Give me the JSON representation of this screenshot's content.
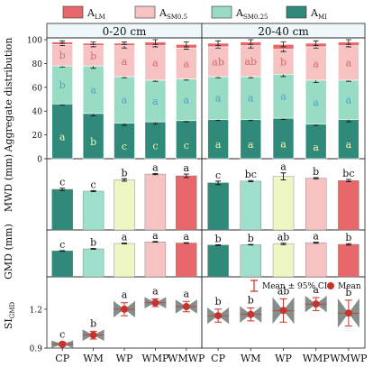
{
  "legend": {
    "items": [
      {
        "key": "LM",
        "base": "A",
        "sub": "LM",
        "color": "#e8676b"
      },
      {
        "key": "SM05",
        "base": "A",
        "sub": "SM0.5",
        "color": "#f6c2c2"
      },
      {
        "key": "SM025",
        "base": "A",
        "sub": "SM0.25",
        "color": "#99dcc4"
      },
      {
        "key": "MI",
        "base": "A",
        "sub": "MI",
        "color": "#2f8a7a"
      }
    ]
  },
  "panels": {
    "left_title": "0-20  cm",
    "right_title": "20-40 cm"
  },
  "ylabels": {
    "agg": "Aggregate distribution",
    "mwd": "MWD (mm)",
    "gmd": "GMD (mm)",
    "si_base": "SI",
    "si_sub": "GMD"
  },
  "ci_legend": {
    "ci_label": "Mean ± 95% CI",
    "mean_label": "Mean"
  },
  "colors": {
    "CP": "#2f8a7a",
    "WM": "#9ee0cc",
    "WP": "#eef7c4",
    "WMP": "#f6c2c2",
    "WMWP": "#e8676b",
    "header_bg": "#eef7fa",
    "si_mean": "#c8332e",
    "si_marker": "#6e7b78",
    "letter_text": "#111111"
  },
  "chart_data": [
    {
      "id": "aggregate",
      "type": "bar",
      "stacked": true,
      "ylabel": "Aggregate distribution",
      "ylim": [
        0,
        100
      ],
      "yticks": [
        0,
        20,
        40,
        60,
        80,
        100
      ],
      "categories": [
        "CP",
        "WM",
        "WP",
        "WMP",
        "WMWP"
      ],
      "series_order": [
        "MI",
        "SM025",
        "SM05",
        "LM"
      ],
      "depths": [
        {
          "depth": "0-20  cm",
          "MI": [
            46,
            38,
            30,
            31,
            32
          ],
          "SM025": [
            32,
            40,
            39,
            35,
            35
          ],
          "SM05": [
            18,
            17,
            26,
            29,
            26
          ],
          "LM": [
            2,
            2,
            2,
            3,
            3
          ],
          "errors": {
            "MI": [
              1,
              2,
              2,
              2,
              1
            ],
            "SM025": [
              1,
              2,
              1,
              1,
              1
            ],
            "SM05": [
              1,
              1,
              2,
              1,
              1
            ],
            "LM": [
              1,
              1,
              1,
              2,
              2
            ]
          },
          "letters": {
            "MI": [
              "a",
              "b",
              "c",
              "c",
              "c"
            ],
            "SM025": [
              "b",
              "a",
              "a",
              "a",
              "a"
            ],
            "SM05": [
              "b",
              "b",
              "a",
              "a",
              "a"
            ]
          }
        },
        {
          "depth": "20-40 cm",
          "MI": [
            33,
            33,
            34,
            29,
            33
          ],
          "SM025": [
            36,
            36,
            37,
            37,
            33
          ],
          "SM05": [
            25,
            26,
            21,
            28,
            29
          ],
          "LM": [
            3,
            3,
            4,
            3,
            3
          ],
          "errors": {
            "MI": [
              1,
              1,
              1,
              1,
              2
            ],
            "SM025": [
              1,
              1,
              2,
              2,
              1
            ],
            "SM05": [
              1,
              2,
              2,
              1,
              1
            ],
            "LM": [
              2,
              2,
              2,
              2,
              2
            ]
          },
          "letters": {
            "MI": [
              "a",
              "a",
              "a",
              "a",
              "a"
            ],
            "SM025": [
              "a",
              "a",
              "a",
              "a",
              "a"
            ],
            "SM05": [
              "ab",
              "ab",
              "b",
              "a",
              "a"
            ]
          }
        }
      ]
    },
    {
      "id": "mwd",
      "type": "bar",
      "ylabel": "MWD (mm)",
      "categories": [
        "CP",
        "WM",
        "WP",
        "WMP",
        "WMWP"
      ],
      "depths": [
        {
          "depth": "0-20  cm",
          "values": [
            0.69,
            0.66,
            0.85,
            0.95,
            0.92
          ],
          "errors": [
            0.02,
            0.01,
            0.02,
            0.01,
            0.03
          ],
          "letters": [
            "c",
            "c",
            "b",
            "a",
            "a"
          ]
        },
        {
          "depth": "20-40 cm",
          "values": [
            0.8,
            0.83,
            0.91,
            0.88,
            0.84
          ],
          "errors": [
            0.03,
            0.01,
            0.06,
            0.01,
            0.02
          ],
          "letters": [
            "c",
            "bc",
            "a",
            "b",
            "bc"
          ]
        }
      ]
    },
    {
      "id": "gmd",
      "type": "bar",
      "ylabel": "GMD (mm)",
      "categories": [
        "CP",
        "WM",
        "WP",
        "WMP",
        "WMWP"
      ],
      "depths": [
        {
          "depth": "0-20  cm",
          "values": [
            0.288,
            0.31,
            0.37,
            0.388,
            0.375
          ],
          "errors": [
            0.003,
            0.004,
            0.004,
            0.004,
            0.003
          ],
          "letters": [
            "c",
            "b",
            "a",
            "a",
            "a"
          ]
        },
        {
          "depth": "20-40 cm",
          "values": [
            0.352,
            0.356,
            0.365,
            0.378,
            0.36
          ],
          "errors": [
            0.004,
            0.003,
            0.008,
            0.006,
            0.008
          ],
          "letters": [
            "b",
            "b",
            "ab",
            "a",
            "b"
          ]
        }
      ]
    },
    {
      "id": "si_gmd",
      "type": "scatter",
      "ylabel": "SI GMD",
      "ylim": [
        0.9,
        1.45
      ],
      "yticks": [
        0.9,
        1.2
      ],
      "categories": [
        "CP",
        "WM",
        "WP",
        "WMP",
        "WMWP"
      ],
      "depths": [
        {
          "depth": "0-20  cm",
          "mean": [
            0.93,
            1.0,
            1.2,
            1.25,
            1.22
          ],
          "ci": [
            0.015,
            0.03,
            0.05,
            0.03,
            0.04
          ],
          "letters": [
            "c",
            "b",
            "a",
            "a",
            "a"
          ]
        },
        {
          "depth": "20-40 cm",
          "mean": [
            1.15,
            1.16,
            1.19,
            1.24,
            1.17
          ],
          "ci": [
            0.05,
            0.05,
            0.09,
            0.05,
            0.1
          ],
          "letters": [
            "b",
            "b",
            "ab",
            "a",
            "b"
          ]
        }
      ]
    }
  ]
}
